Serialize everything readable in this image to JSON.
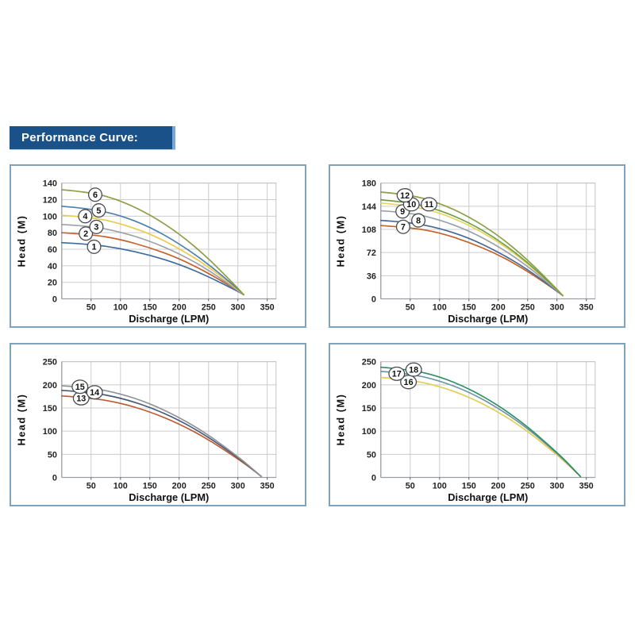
{
  "header": {
    "title": "Performance Curve:",
    "bg_color": "#1b5189",
    "text_color": "#ffffff"
  },
  "layout": {
    "panel_border_color": "#7fa3bd",
    "grid_color": "#cccccc",
    "axis_color": "#9a9ea2",
    "tick_mark_color": "#55595d"
  },
  "chart_data": [
    {
      "type": "line",
      "title": "",
      "xlabel": "Discharge (LPM)",
      "ylabel": "Head (M)",
      "xlim": [
        0,
        365
      ],
      "ylim": [
        0,
        140
      ],
      "grid": true,
      "legend": "circled numbers on curves",
      "xticks": [
        50,
        100,
        150,
        200,
        250,
        300,
        350
      ],
      "yticks": [
        0,
        20,
        40,
        60,
        80,
        100,
        120,
        140
      ],
      "x": [
        0,
        50,
        100,
        150,
        200,
        250,
        300,
        310
      ],
      "series": [
        {
          "name": "1",
          "color": "#3e6b9e",
          "values": [
            68,
            66,
            61,
            53,
            42,
            27,
            9,
            5
          ],
          "label_x": 55,
          "label_y": 63
        },
        {
          "name": "2",
          "color": "#c4622d",
          "values": [
            80,
            78,
            72,
            62,
            49,
            31,
            10,
            5
          ],
          "label_x": 41,
          "label_y": 79
        },
        {
          "name": "3",
          "color": "#9ba1a8",
          "values": [
            90,
            88,
            81,
            70,
            55,
            35,
            10,
            5
          ],
          "label_x": 59,
          "label_y": 87
        },
        {
          "name": "4",
          "color": "#e8cc4f",
          "values": [
            101,
            99,
            91,
            79,
            61,
            39,
            11,
            5
          ],
          "label_x": 40,
          "label_y": 100
        },
        {
          "name": "5",
          "color": "#4e80ae",
          "values": [
            112,
            109,
            101,
            87,
            67,
            42,
            12,
            5
          ],
          "label_x": 63,
          "label_y": 107
        },
        {
          "name": "6",
          "color": "#8f9c48",
          "values": [
            132,
            129,
            119,
            102,
            79,
            49,
            13,
            5
          ],
          "label_x": 57,
          "label_y": 126
        }
      ]
    },
    {
      "type": "line",
      "title": "",
      "xlabel": "Discharge (LPM)",
      "ylabel": "Head (M)",
      "xlim": [
        0,
        365
      ],
      "ylim": [
        0,
        180
      ],
      "grid": true,
      "legend": "circled numbers on curves",
      "xticks": [
        50,
        100,
        150,
        200,
        250,
        300,
        350
      ],
      "yticks": [
        0,
        36,
        72,
        108,
        144,
        180
      ],
      "x": [
        0,
        50,
        100,
        150,
        200,
        250,
        300,
        310
      ],
      "series": [
        {
          "name": "7",
          "color": "#c4622d",
          "values": [
            114,
            111,
            103,
            88,
            69,
            43,
            12,
            5
          ],
          "label_x": 38,
          "label_y": 112
        },
        {
          "name": "8",
          "color": "#44699b",
          "values": [
            122,
            119,
            110,
            95,
            73,
            46,
            12,
            5
          ],
          "label_x": 64,
          "label_y": 122
        },
        {
          "name": "9",
          "color": "#9ba1a8",
          "values": [
            137,
            134,
            123,
            106,
            82,
            51,
            13,
            5
          ],
          "label_x": 37,
          "label_y": 136
        },
        {
          "name": "10",
          "color": "#e8d45e",
          "values": [
            149,
            145,
            134,
            115,
            89,
            55,
            14,
            5
          ],
          "label_x": 52,
          "label_y": 147
        },
        {
          "name": "11",
          "color": "#6da04b",
          "values": [
            154,
            150,
            138,
            119,
            92,
            57,
            14,
            5
          ],
          "label_x": 82,
          "label_y": 147
        },
        {
          "name": "12",
          "color": "#8f9c48",
          "values": [
            166,
            162,
            149,
            128,
            99,
            61,
            15,
            5
          ],
          "label_x": 41,
          "label_y": 161
        }
      ]
    },
    {
      "type": "line",
      "title": "",
      "xlabel": "Discharge (LPM)",
      "ylabel": "Head (M)",
      "xlim": [
        0,
        365
      ],
      "ylim": [
        0,
        250
      ],
      "grid": true,
      "legend": "circled numbers on curves",
      "xticks": [
        50,
        100,
        150,
        200,
        250,
        300,
        350
      ],
      "yticks": [
        0,
        50,
        100,
        150,
        200,
        250
      ],
      "x": [
        0,
        50,
        100,
        150,
        200,
        250,
        300,
        320,
        340
      ],
      "series": [
        {
          "name": "13",
          "color": "#bc5a33",
          "values": [
            176,
            172,
            161,
            142,
            116,
            82,
            40,
            22,
            2
          ],
          "label_x": 33,
          "label_y": 171
        },
        {
          "name": "14",
          "color": "#4a5a78",
          "values": [
            188,
            184,
            172,
            152,
            124,
            87,
            43,
            23,
            2
          ],
          "label_x": 56,
          "label_y": 184
        },
        {
          "name": "15",
          "color": "#8e939b",
          "values": [
            198,
            194,
            181,
            160,
            130,
            92,
            45,
            24,
            2
          ],
          "label_x": 31,
          "label_y": 196
        }
      ]
    },
    {
      "type": "line",
      "title": "",
      "xlabel": "Discharge (LPM)",
      "ylabel": "Head (M)",
      "xlim": [
        0,
        365
      ],
      "ylim": [
        0,
        250
      ],
      "grid": true,
      "legend": "circled numbers on curves",
      "xticks": [
        50,
        100,
        150,
        200,
        250,
        300,
        350
      ],
      "yticks": [
        0,
        50,
        100,
        150,
        200,
        250
      ],
      "x": [
        0,
        50,
        100,
        150,
        200,
        250,
        300,
        320,
        340
      ],
      "series": [
        {
          "name": "16",
          "color": "#e3cf55",
          "values": [
            216,
            211,
            197,
            174,
            142,
            100,
            49,
            26,
            2
          ],
          "label_x": 47,
          "label_y": 206
        },
        {
          "name": "17",
          "color": "#7096a8",
          "values": [
            229,
            224,
            209,
            185,
            150,
            106,
            52,
            28,
            2
          ],
          "label_x": 27,
          "label_y": 224
        },
        {
          "name": "18",
          "color": "#2f8f68",
          "values": [
            238,
            233,
            218,
            192,
            156,
            110,
            54,
            29,
            2
          ],
          "label_x": 56,
          "label_y": 233
        }
      ]
    }
  ]
}
